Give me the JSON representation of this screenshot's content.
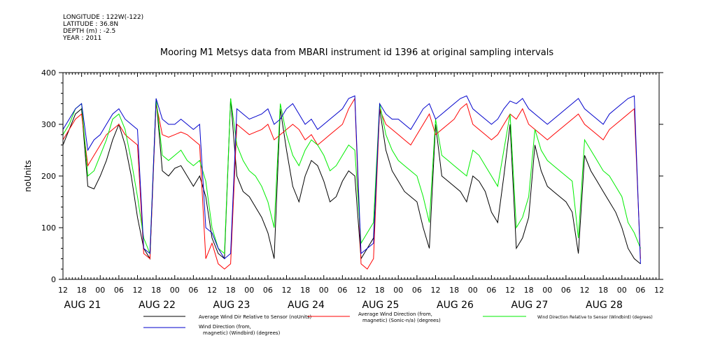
{
  "header": {
    "longitude": "LONGITUDE : 122W(-122)",
    "latitude": "LATITUDE : 36.8N",
    "depth": "DEPTH (m) : -2.5",
    "year": "YEAR : 2011"
  },
  "chart_data": {
    "type": "line",
    "title": "Mooring M1 Metsys data from MBARI instrument id 1396 at original sampling intervals",
    "ylabel": "noUnits",
    "xlabel": "",
    "ylim": [
      0,
      400
    ],
    "xlim": [
      0,
      186
    ],
    "x_unit": "hours since AUG 21 12:00",
    "y_ticks": [
      0,
      100,
      200,
      300,
      400
    ],
    "hour_ticks": [
      {
        "x": 0,
        "label": "12"
      },
      {
        "x": 6,
        "label": "18"
      },
      {
        "x": 12,
        "label": "00"
      },
      {
        "x": 18,
        "label": "06"
      },
      {
        "x": 24,
        "label": "12"
      },
      {
        "x": 30,
        "label": "18"
      },
      {
        "x": 36,
        "label": "00"
      },
      {
        "x": 42,
        "label": "06"
      },
      {
        "x": 48,
        "label": "12"
      },
      {
        "x": 54,
        "label": "18"
      },
      {
        "x": 60,
        "label": "00"
      },
      {
        "x": 66,
        "label": "06"
      },
      {
        "x": 72,
        "label": "12"
      },
      {
        "x": 78,
        "label": "18"
      },
      {
        "x": 84,
        "label": "00"
      },
      {
        "x": 90,
        "label": "06"
      },
      {
        "x": 96,
        "label": "12"
      },
      {
        "x": 102,
        "label": "18"
      },
      {
        "x": 108,
        "label": "00"
      },
      {
        "x": 114,
        "label": "06"
      },
      {
        "x": 120,
        "label": "12"
      },
      {
        "x": 126,
        "label": "18"
      },
      {
        "x": 132,
        "label": "00"
      },
      {
        "x": 138,
        "label": "06"
      },
      {
        "x": 144,
        "label": "12"
      },
      {
        "x": 150,
        "label": "18"
      },
      {
        "x": 156,
        "label": "00"
      },
      {
        "x": 162,
        "label": "06"
      },
      {
        "x": 168,
        "label": "12"
      },
      {
        "x": 174,
        "label": "18"
      },
      {
        "x": 180,
        "label": "00"
      },
      {
        "x": 186,
        "label": "06"
      },
      {
        "x": 192,
        "label": "12"
      }
    ],
    "date_labels": [
      {
        "x": 0,
        "label": "AUG 21"
      },
      {
        "x": 24,
        "label": "AUG 22"
      },
      {
        "x": 48,
        "label": "AUG 23"
      },
      {
        "x": 72,
        "label": "AUG 24"
      },
      {
        "x": 96,
        "label": "AUG 25"
      },
      {
        "x": 120,
        "label": "AUG 26"
      },
      {
        "x": 144,
        "label": "AUG 27"
      },
      {
        "x": 168,
        "label": "AUG 28"
      }
    ],
    "series": [
      {
        "name": "Average Wind Dir Relative to Sensor (noUnits)",
        "color": "#000000",
        "x": [
          0,
          2,
          4,
          6,
          8,
          10,
          12,
          14,
          16,
          18,
          20,
          22,
          24,
          26,
          28,
          30,
          32,
          34,
          36,
          38,
          40,
          42,
          44,
          46,
          48,
          50,
          52,
          54,
          56,
          58,
          60,
          62,
          64,
          66,
          68,
          70,
          72,
          74,
          76,
          78,
          80,
          82,
          84,
          86,
          88,
          90,
          92,
          94,
          96,
          98,
          100,
          102,
          104,
          106,
          108,
          110,
          112,
          114,
          116,
          118,
          120,
          122,
          124,
          126,
          128,
          130,
          132,
          134,
          136,
          138,
          140,
          142,
          144,
          146,
          148,
          150,
          152,
          154,
          156,
          158,
          160,
          162,
          164,
          166,
          168,
          170,
          172,
          174,
          176,
          178,
          180,
          182,
          184,
          186
        ],
        "y": [
          260,
          290,
          320,
          330,
          180,
          175,
          200,
          230,
          270,
          300,
          260,
          200,
          120,
          60,
          40,
          350,
          210,
          200,
          215,
          220,
          200,
          180,
          200,
          160,
          80,
          50,
          40,
          350,
          200,
          170,
          160,
          140,
          120,
          90,
          40,
          330,
          250,
          180,
          150,
          200,
          230,
          220,
          190,
          150,
          160,
          190,
          210,
          200,
          40,
          60,
          80,
          330,
          250,
          210,
          190,
          170,
          160,
          150,
          100,
          60,
          300,
          200,
          190,
          180,
          170,
          150,
          200,
          190,
          170,
          130,
          110,
          200,
          300,
          60,
          80,
          120,
          260,
          210,
          180,
          170,
          160,
          150,
          130,
          50,
          240,
          210,
          190,
          170,
          150,
          130,
          100,
          60,
          40,
          30
        ]
      },
      {
        "name": "Average Wind Direction (from, magnetic) (Sonic-n/a) (degrees)",
        "color": "#ff0000",
        "x": [
          0,
          2,
          4,
          6,
          8,
          10,
          12,
          14,
          16,
          18,
          20,
          22,
          24,
          26,
          28,
          30,
          32,
          34,
          36,
          38,
          40,
          42,
          44,
          46,
          48,
          50,
          52,
          54,
          56,
          58,
          60,
          62,
          64,
          66,
          68,
          70,
          72,
          74,
          76,
          78,
          80,
          82,
          84,
          86,
          88,
          90,
          92,
          94,
          96,
          98,
          100,
          102,
          104,
          106,
          108,
          110,
          112,
          114,
          116,
          118,
          120,
          122,
          124,
          126,
          128,
          130,
          132,
          134,
          136,
          138,
          140,
          142,
          144,
          146,
          148,
          150,
          152,
          154,
          156,
          158,
          160,
          162,
          164,
          166,
          168,
          170,
          172,
          174,
          176,
          178,
          180,
          182,
          184,
          186
        ],
        "y": [
          270,
          290,
          310,
          320,
          220,
          240,
          260,
          280,
          290,
          300,
          280,
          270,
          260,
          50,
          40,
          340,
          280,
          275,
          280,
          285,
          280,
          270,
          260,
          40,
          70,
          30,
          20,
          30,
          300,
          290,
          280,
          285,
          290,
          300,
          270,
          280,
          290,
          300,
          290,
          270,
          280,
          260,
          270,
          280,
          290,
          300,
          330,
          350,
          30,
          20,
          40,
          330,
          300,
          290,
          280,
          270,
          260,
          280,
          300,
          320,
          280,
          290,
          300,
          310,
          330,
          340,
          300,
          290,
          280,
          270,
          280,
          300,
          320,
          310,
          330,
          300,
          290,
          280,
          270,
          280,
          290,
          300,
          310,
          320,
          300,
          290,
          280,
          270,
          290,
          300,
          310,
          320,
          330,
          40
        ]
      },
      {
        "name": "Wind Direction Relative to Sensor (Windbird) (degrees)",
        "color": "#00ee00",
        "x": [
          0,
          2,
          4,
          6,
          8,
          10,
          12,
          14,
          16,
          18,
          20,
          22,
          24,
          26,
          28,
          30,
          32,
          34,
          36,
          38,
          40,
          42,
          44,
          46,
          48,
          50,
          52,
          54,
          56,
          58,
          60,
          62,
          64,
          66,
          68,
          70,
          72,
          74,
          76,
          78,
          80,
          82,
          84,
          86,
          88,
          90,
          92,
          94,
          96,
          98,
          100,
          102,
          104,
          106,
          108,
          110,
          112,
          114,
          116,
          118,
          120,
          122,
          124,
          126,
          128,
          130,
          132,
          134,
          136,
          138,
          140,
          142,
          144,
          146,
          148,
          150,
          152,
          154,
          156,
          158,
          160,
          162,
          164,
          166,
          168,
          170,
          172,
          174,
          176,
          178,
          180,
          182,
          184,
          186
        ],
        "y": [
          280,
          300,
          330,
          340,
          200,
          210,
          240,
          270,
          310,
          320,
          290,
          230,
          160,
          80,
          50,
          350,
          240,
          230,
          240,
          250,
          230,
          220,
          230,
          190,
          100,
          60,
          50,
          350,
          260,
          230,
          210,
          200,
          180,
          150,
          100,
          340,
          280,
          240,
          220,
          250,
          270,
          260,
          240,
          210,
          220,
          240,
          260,
          250,
          70,
          90,
          110,
          340,
          280,
          250,
          230,
          220,
          210,
          200,
          160,
          110,
          310,
          240,
          230,
          220,
          210,
          200,
          250,
          240,
          220,
          200,
          180,
          250,
          320,
          100,
          120,
          160,
          290,
          250,
          230,
          220,
          210,
          200,
          190,
          80,
          270,
          250,
          230,
          210,
          200,
          180,
          160,
          110,
          90,
          60
        ]
      },
      {
        "name": "Wind Direction (from, magnetic) (Windbird) (degrees)",
        "color": "#0000cc",
        "x": [
          0,
          2,
          4,
          6,
          8,
          10,
          12,
          14,
          16,
          18,
          20,
          22,
          24,
          26,
          28,
          30,
          32,
          34,
          36,
          38,
          40,
          42,
          44,
          46,
          48,
          50,
          52,
          54,
          56,
          58,
          60,
          62,
          64,
          66,
          68,
          70,
          72,
          74,
          76,
          78,
          80,
          82,
          84,
          86,
          88,
          90,
          92,
          94,
          96,
          98,
          100,
          102,
          104,
          106,
          108,
          110,
          112,
          114,
          116,
          118,
          120,
          122,
          124,
          126,
          128,
          130,
          132,
          134,
          136,
          138,
          140,
          142,
          144,
          146,
          148,
          150,
          152,
          154,
          156,
          158,
          160,
          162,
          164,
          166,
          168,
          170,
          172,
          174,
          176,
          178,
          180,
          182,
          184,
          186
        ],
        "y": [
          290,
          310,
          330,
          340,
          250,
          270,
          280,
          300,
          320,
          330,
          310,
          300,
          290,
          60,
          50,
          350,
          310,
          300,
          300,
          310,
          300,
          290,
          300,
          100,
          90,
          60,
          40,
          50,
          330,
          320,
          310,
          315,
          320,
          330,
          300,
          310,
          330,
          340,
          320,
          300,
          310,
          290,
          300,
          310,
          320,
          330,
          350,
          355,
          50,
          60,
          70,
          340,
          320,
          310,
          310,
          300,
          290,
          310,
          330,
          340,
          310,
          320,
          330,
          340,
          350,
          355,
          330,
          320,
          310,
          300,
          310,
          330,
          345,
          340,
          350,
          330,
          320,
          310,
          300,
          310,
          320,
          330,
          340,
          350,
          330,
          320,
          310,
          300,
          320,
          330,
          340,
          350,
          355,
          30
        ]
      }
    ],
    "legend": [
      {
        "label_lines": [
          "Average Wind Dir Relative to Sensor (noUnits)"
        ],
        "color": "#000000"
      },
      {
        "label_lines": [
          "Average Wind Direction (from,",
          "magnetic) (Sonic-n/a) (degrees)"
        ],
        "color": "#ff0000"
      },
      {
        "label_lines": [
          "Wind Direction Relative to Sensor (Windbird) (degrees)"
        ],
        "color": "#00ee00"
      },
      {
        "label_lines": [
          "Wind Direction (from,",
          "magnetic) (Windbird) (degrees)"
        ],
        "color": "#0000cc"
      }
    ],
    "grid": false,
    "legend_position": "bottom"
  }
}
